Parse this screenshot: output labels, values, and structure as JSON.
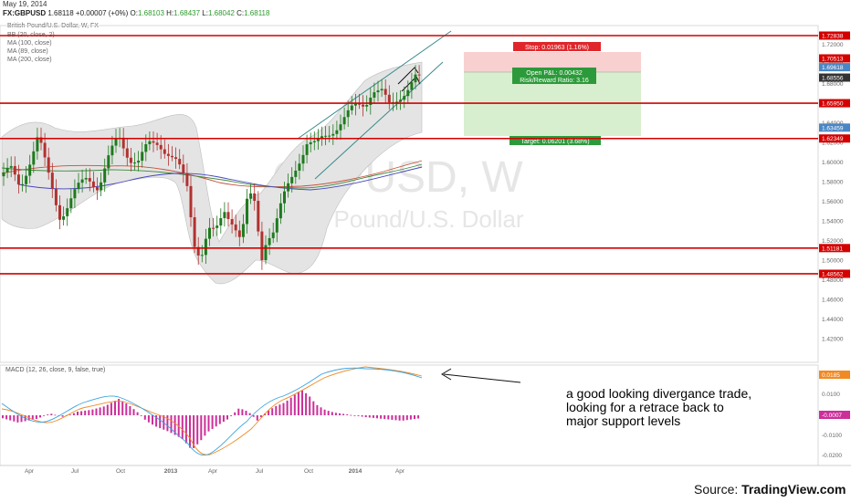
{
  "header": {
    "date": "May 19, 2014",
    "symbol": "FX:GBPUSD",
    "last": "1.68118",
    "change": "+0.00007 (+0%)",
    "open_label": "O:",
    "open": "1.68103",
    "high_label": "H:",
    "high": "1.68437",
    "low_label": "L:",
    "low": "1.68042",
    "close_label": "C:",
    "close": "1.68118"
  },
  "indicators": [
    "British Pound/U.S. Dollar, W, FX",
    "BB (20, close, 2)",
    "MA (100, close)",
    "MA (89, close)",
    "MA (200, close)"
  ],
  "watermark": {
    "symbol": "GBPUSD, W",
    "name": "British Pound/U.S. Dollar"
  },
  "trade": {
    "stop_label": "Stop: 0.01963 (1.16%)",
    "pnl_label": "Open P&L: 0.00432",
    "rr_label": "Risk/Reward Ratio: 3.16",
    "target_label": "Target: 0.06201 (3.68%)"
  },
  "macd_label": "MACD (12, 26, close, 9, false, true)",
  "annotation": "a good looking divergance trade, looking for a retrace back to major support levels",
  "source": {
    "prefix": "Source: ",
    "brand": "TradingView.com"
  },
  "colors": {
    "up": "#1e7a1e",
    "down": "#b0322f",
    "level_line": "#d40000",
    "bb_fill": "#e4e4e4",
    "macd_hist": "#cc2f9a",
    "macd_line": "#3aa3e0",
    "signal_line": "#f08a24"
  },
  "chart_data": {
    "type": "candlestick",
    "price_axis": {
      "ylim": [
        1.4,
        1.72838
      ],
      "ticks": [
        "1.72000",
        "1.70000",
        "1.68000",
        "1.66000",
        "1.64000",
        "1.62000",
        "1.60000",
        "1.58000",
        "1.56000",
        "1.54000",
        "1.52000",
        "1.50000",
        "1.48000",
        "1.46000",
        "1.44000",
        "1.42000"
      ]
    },
    "price_labels": [
      {
        "value": "1.72838",
        "color": "#d40000"
      },
      {
        "value": "1.70513",
        "color": "#d40000"
      },
      {
        "value": "1.69618",
        "color": "#4a86c5"
      },
      {
        "value": "1.68556",
        "color": "#333333"
      },
      {
        "value": "1.65950",
        "color": "#d40000"
      },
      {
        "value": "1.63459",
        "color": "#4a86c5"
      },
      {
        "value": "1.62349",
        "color": "#d40000"
      },
      {
        "value": "1.51181",
        "color": "#d40000"
      },
      {
        "value": "1.48562",
        "color": "#d40000"
      }
    ],
    "horizontal_levels": [
      1.72838,
      1.6595,
      1.62349,
      1.51181,
      1.48562
    ],
    "x_ticks": [
      "Apr",
      "Jul",
      "Oct",
      "2013",
      "Apr",
      "Jul",
      "Oct",
      "2014",
      "Apr"
    ],
    "macd_axis": {
      "ticks": [
        "0.0100",
        "-0.0100",
        "-0.0200"
      ],
      "macd_value": "0.0185",
      "signal_value": "-0.0007"
    }
  }
}
